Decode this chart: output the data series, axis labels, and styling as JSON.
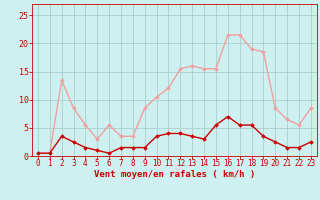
{
  "x": [
    0,
    1,
    2,
    3,
    4,
    5,
    6,
    7,
    8,
    9,
    10,
    11,
    12,
    13,
    14,
    15,
    16,
    17,
    18,
    19,
    20,
    21,
    22,
    23
  ],
  "y_rafales": [
    0.5,
    0.5,
    13.5,
    8.5,
    5.5,
    3.0,
    5.5,
    3.5,
    3.5,
    8.5,
    10.5,
    12.0,
    15.5,
    16.0,
    15.5,
    15.5,
    21.5,
    21.5,
    19.0,
    18.5,
    8.5,
    6.5,
    5.5,
    8.5
  ],
  "y_moyen": [
    0.5,
    0.5,
    3.5,
    2.5,
    1.5,
    1.0,
    0.5,
    1.5,
    1.5,
    1.5,
    3.5,
    4.0,
    4.0,
    3.5,
    3.0,
    5.5,
    7.0,
    5.5,
    5.5,
    3.5,
    2.5,
    1.5,
    1.5,
    2.5
  ],
  "color_rafales": "#f0a0a0",
  "color_moyen": "#cc0000",
  "bg_color": "#cef0f0",
  "grid_color": "#aacfcf",
  "xlabel": "Vent moyen/en rafales ( km/h )",
  "ylim": [
    0,
    27
  ],
  "xlim": [
    -0.5,
    23.5
  ],
  "yticks": [
    0,
    5,
    10,
    15,
    20,
    25
  ],
  "xticks": [
    0,
    1,
    2,
    3,
    4,
    5,
    6,
    7,
    8,
    9,
    10,
    11,
    12,
    13,
    14,
    15,
    16,
    17,
    18,
    19,
    20,
    21,
    22,
    23
  ],
  "marker": "D",
  "markersize": 1.8,
  "linewidth": 1.0,
  "tick_color": "#cc0000",
  "label_fontsize": 5.5,
  "xlabel_fontsize": 6.5
}
